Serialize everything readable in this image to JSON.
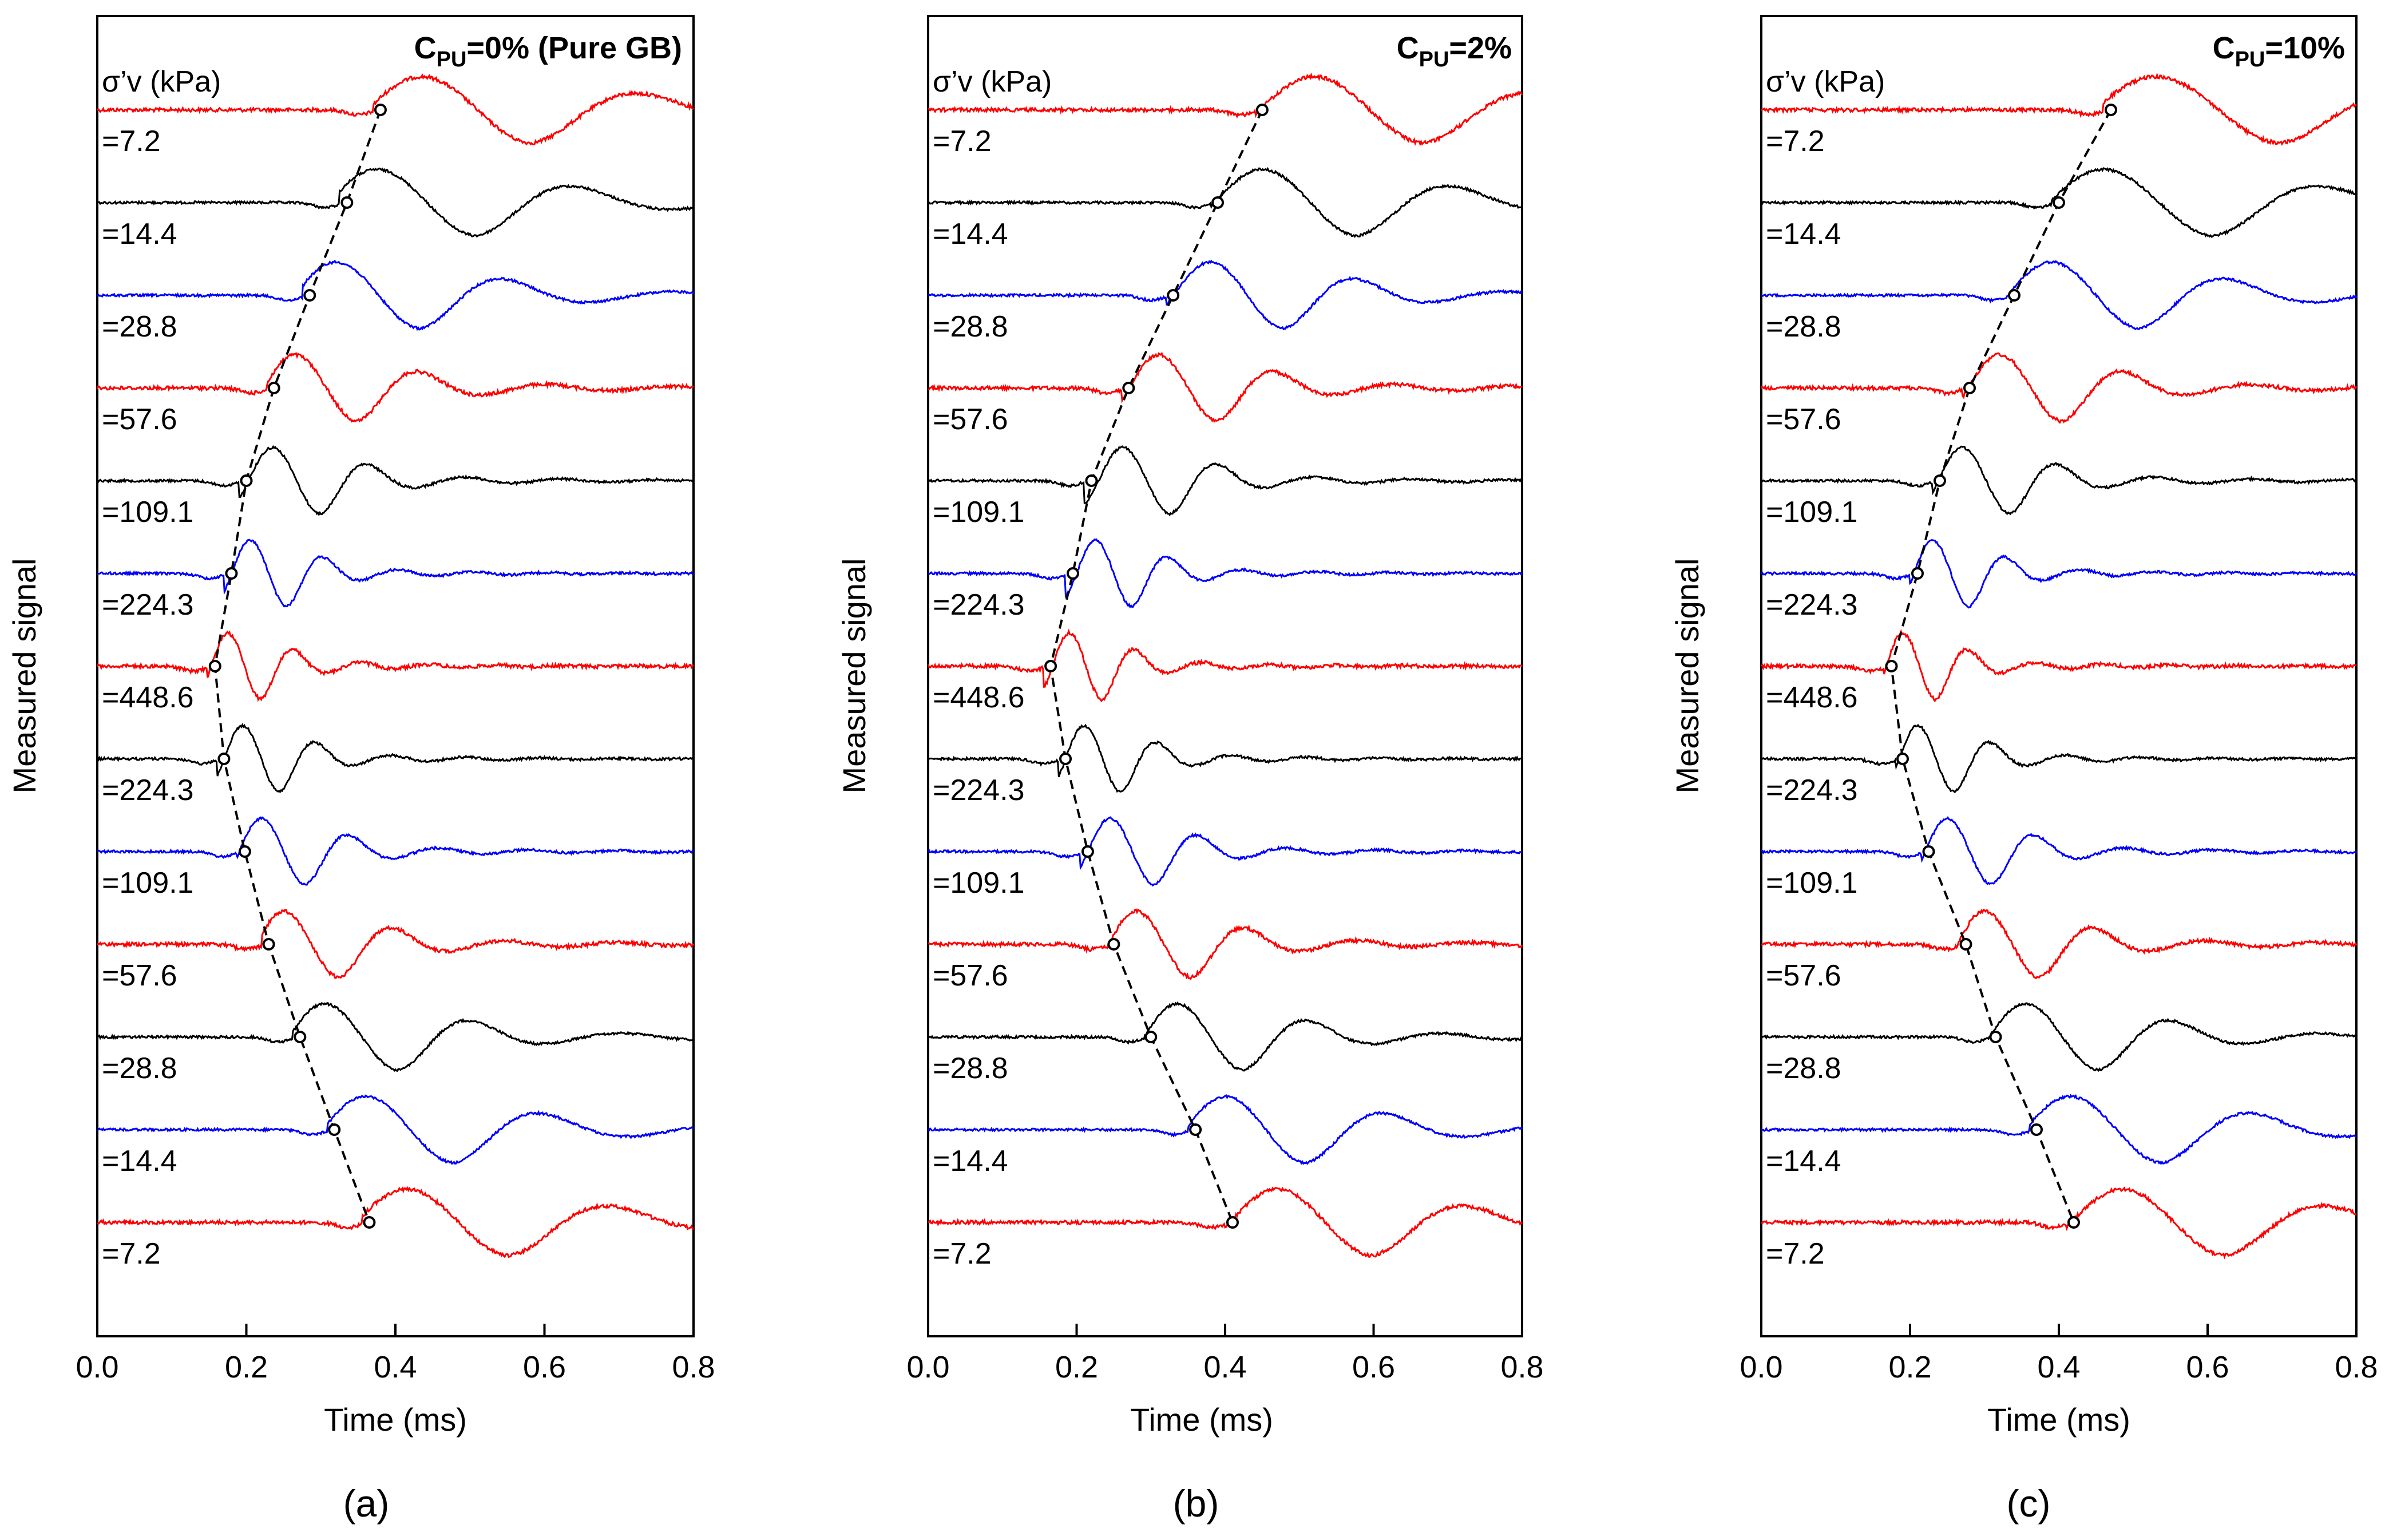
{
  "figure": {
    "panel_labels": [
      "(a)",
      "(b)",
      "(c)"
    ]
  },
  "colors": {
    "red": "#ff0000",
    "black": "#000000",
    "blue": "#0000ff",
    "axis": "#000000"
  },
  "chart_data": [
    {
      "type": "line",
      "panel": "a",
      "title_main": "C",
      "title_sub": "PU",
      "title_tail": "=0%  (Pure GB)",
      "xlabel": "Time (ms)",
      "ylabel": "Measured signal",
      "stress_header": "σ’v (kPa)",
      "xlim": [
        0.0,
        0.8
      ],
      "xticks": [
        "0.0",
        "0.2",
        "0.4",
        "0.6",
        "0.8"
      ],
      "stress_labels": [
        "=7.2",
        "=14.4",
        "=28.8",
        "=57.6",
        "=109.1",
        "=224.3",
        "=448.6",
        "=224.3",
        "=109.1",
        "=57.6",
        "=28.8",
        "=14.4",
        "=7.2"
      ],
      "trace_colors": [
        "red",
        "black",
        "blue",
        "red",
        "black",
        "blue",
        "red",
        "black",
        "blue",
        "red",
        "black",
        "blue",
        "red"
      ],
      "arrival_times_ms": [
        0.38,
        0.335,
        0.285,
        0.237,
        0.2,
        0.18,
        0.158,
        0.17,
        0.198,
        0.23,
        0.272,
        0.318,
        0.365
      ],
      "peak_times_ms": [
        0.435,
        0.375,
        0.32,
        0.265,
        0.235,
        0.205,
        0.175,
        0.195,
        0.22,
        0.25,
        0.305,
        0.36,
        0.415
      ],
      "periods_ms": [
        0.3,
        0.27,
        0.23,
        0.17,
        0.13,
        0.1,
        0.09,
        0.1,
        0.12,
        0.15,
        0.2,
        0.24,
        0.28
      ]
    },
    {
      "type": "line",
      "panel": "b",
      "title_main": "C",
      "title_sub": "PU",
      "title_tail": "=2%",
      "xlabel": "Time (ms)",
      "ylabel": "Measured signal",
      "stress_header": "σ’v (kPa)",
      "xlim": [
        0.0,
        0.8
      ],
      "xticks": [
        "0.0",
        "0.2",
        "0.4",
        "0.6",
        "0.8"
      ],
      "stress_labels": [
        "=7.2",
        "=14.4",
        "=28.8",
        "=57.6",
        "=109.1",
        "=224.3",
        "=448.6",
        "=224.3",
        "=109.1",
        "=57.6",
        "=28.8",
        "=14.4",
        "=7.2"
      ],
      "trace_colors": [
        "red",
        "black",
        "blue",
        "red",
        "black",
        "blue",
        "red",
        "black",
        "blue",
        "red",
        "black",
        "blue",
        "red"
      ],
      "arrival_times_ms": [
        0.45,
        0.39,
        0.33,
        0.27,
        0.22,
        0.195,
        0.165,
        0.185,
        0.215,
        0.25,
        0.3,
        0.36,
        0.41
      ],
      "peak_times_ms": [
        0.52,
        0.45,
        0.38,
        0.31,
        0.262,
        0.225,
        0.19,
        0.21,
        0.245,
        0.28,
        0.335,
        0.4,
        0.47
      ],
      "periods_ms": [
        0.3,
        0.26,
        0.2,
        0.16,
        0.13,
        0.1,
        0.09,
        0.1,
        0.12,
        0.15,
        0.18,
        0.22,
        0.26
      ]
    },
    {
      "type": "line",
      "panel": "c",
      "title_main": "C",
      "title_sub": "PU",
      "title_tail": "=10%",
      "xlabel": "Time (ms)",
      "ylabel": "Measured signal",
      "stress_header": "σ’v (kPa)",
      "xlim": [
        0.0,
        0.8
      ],
      "xticks": [
        "0.0",
        "0.2",
        "0.4",
        "0.6",
        "0.8"
      ],
      "stress_labels": [
        "=7.2",
        "=14.4",
        "=28.8",
        "=57.6",
        "=109.1",
        "=224.3",
        "=448.6",
        "=224.3",
        "=109.1",
        "=57.6",
        "=28.8",
        "=14.4",
        "=7.2"
      ],
      "trace_colors": [
        "red",
        "black",
        "blue",
        "red",
        "black",
        "blue",
        "red",
        "black",
        "blue",
        "red",
        "black",
        "blue",
        "red"
      ],
      "arrival_times_ms": [
        0.47,
        0.4,
        0.34,
        0.28,
        0.24,
        0.21,
        0.175,
        0.19,
        0.225,
        0.275,
        0.315,
        0.37,
        0.42
      ],
      "peak_times_ms": [
        0.53,
        0.46,
        0.39,
        0.32,
        0.27,
        0.23,
        0.19,
        0.21,
        0.25,
        0.3,
        0.355,
        0.415,
        0.485
      ],
      "periods_ms": [
        0.34,
        0.3,
        0.24,
        0.17,
        0.13,
        0.1,
        0.09,
        0.1,
        0.12,
        0.15,
        0.2,
        0.25,
        0.28
      ]
    }
  ]
}
